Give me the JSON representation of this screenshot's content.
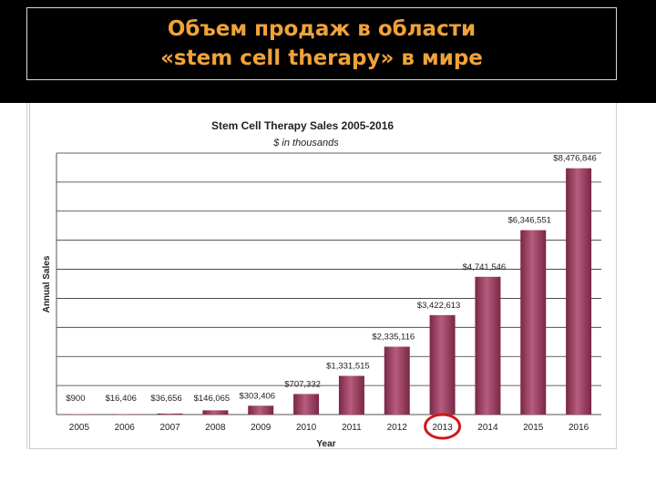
{
  "slide": {
    "title_line1": "Объем продаж в области",
    "title_line2": "«stem cell therapy» в мире"
  },
  "colors": {
    "band": "#000000",
    "title_text": "#f0a23a",
    "bar_fill": "#7a2745",
    "bar_highlight": "#b75c7e",
    "circle": "#d01818"
  },
  "chart_data": {
    "type": "bar",
    "title": "Stem Cell Therapy Sales 2005-2016",
    "subtitle": "$ in thousands",
    "xlabel": "Year",
    "ylabel": "Annual Sales",
    "categories": [
      "2005",
      "2006",
      "2007",
      "2008",
      "2009",
      "2010",
      "2011",
      "2012",
      "2013",
      "2014",
      "2015",
      "2016"
    ],
    "values": [
      900,
      16406,
      36656,
      146065,
      303406,
      707332,
      1331515,
      2335116,
      3422613,
      4741546,
      6346551,
      8476846
    ],
    "data_labels": [
      "$900",
      "$16,406",
      "$36,656",
      "$146,065",
      "$303,406",
      "$707,332",
      "$1,331,515",
      "$2,335,116",
      "$3,422,613",
      "$4,741,546",
      "$6,346,551",
      "$8,476,846"
    ],
    "ylim": [
      0,
      9000000
    ],
    "grid": true,
    "highlighted_category": "2013"
  }
}
